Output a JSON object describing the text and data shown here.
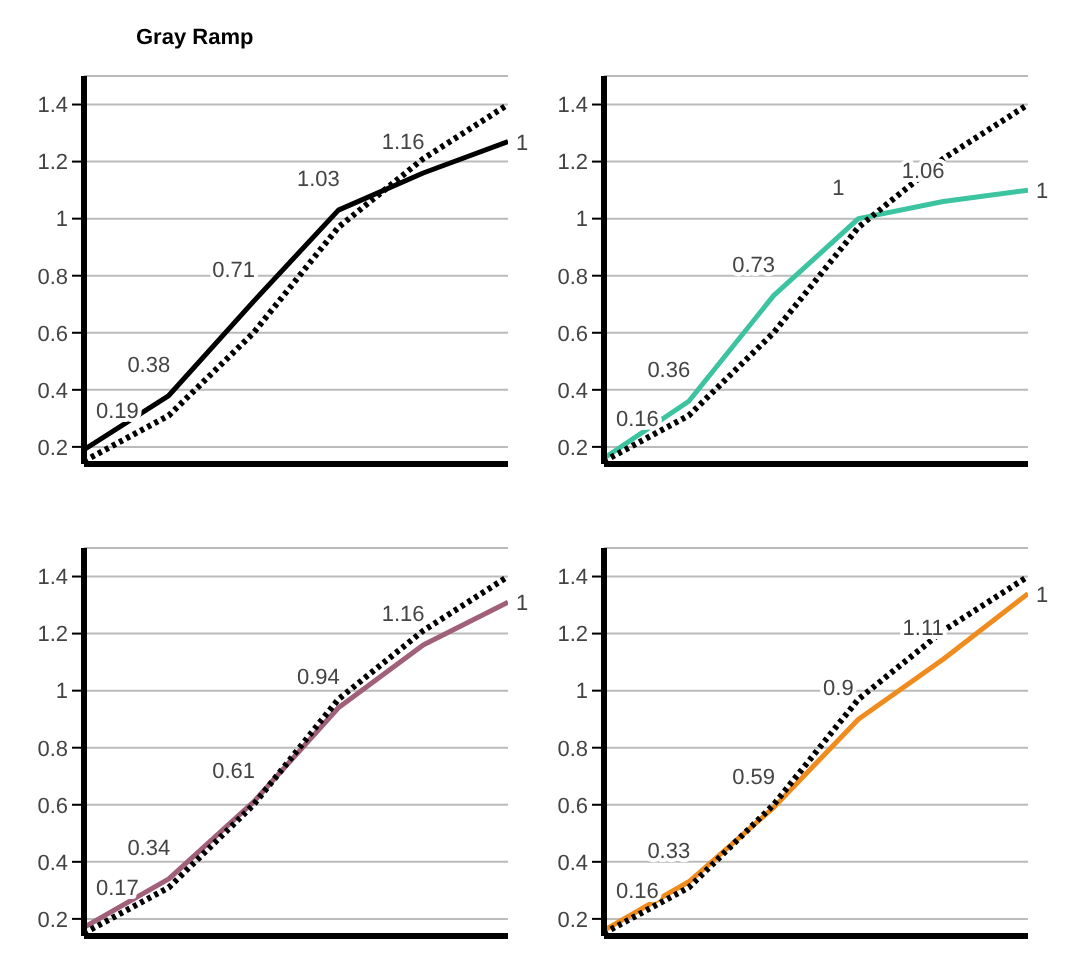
{
  "chart_data": [
    {
      "type": "line",
      "title": "Gray Ramp",
      "categories": [
        null,
        null,
        null,
        null,
        null,
        null
      ],
      "ylim": [
        0.14,
        1.5
      ],
      "yticks": [
        0.2,
        0.4,
        0.6,
        0.8,
        1,
        1.2,
        1.4
      ],
      "grid": "y",
      "tick_labels": "y",
      "marker": "none",
      "series": [
        {
          "color": "#000000",
          "line_style": "solid",
          "values": [
            0.19,
            0.38,
            0.71,
            1.03,
            1.16,
            1.27
          ],
          "value_labels": [
            "0.19",
            "0.38",
            "0.71",
            "1.03",
            "1.16",
            "1"
          ]
        },
        {
          "color": "#000000",
          "line_style": "dotted",
          "values": [
            0.15,
            0.31,
            0.6,
            0.97,
            1.21,
            1.4
          ]
        }
      ]
    },
    {
      "type": "line",
      "categories": [
        null,
        null,
        null,
        null,
        null,
        null
      ],
      "ylim": [
        0.14,
        1.5
      ],
      "yticks": [
        0.2,
        0.4,
        0.6,
        0.8,
        1,
        1.2,
        1.4
      ],
      "grid": "y",
      "tick_labels": "y",
      "marker": "none",
      "series": [
        {
          "color": "#3cc4a0",
          "line_style": "solid",
          "values": [
            0.16,
            0.36,
            0.73,
            1.0,
            1.06,
            1.1
          ],
          "value_labels": [
            "0.16",
            "0.36",
            "0.73",
            "1",
            "1.06",
            "1"
          ]
        },
        {
          "color": "#000000",
          "line_style": "dotted",
          "values": [
            0.15,
            0.31,
            0.6,
            0.97,
            1.21,
            1.4
          ]
        }
      ]
    },
    {
      "type": "line",
      "categories": [
        null,
        null,
        null,
        null,
        null,
        null
      ],
      "ylim": [
        0.14,
        1.5
      ],
      "yticks": [
        0.2,
        0.4,
        0.6,
        0.8,
        1,
        1.2,
        1.4
      ],
      "grid": "y",
      "tick_labels": "y",
      "marker": "none",
      "series": [
        {
          "color": "#a0607a",
          "line_style": "solid",
          "values": [
            0.17,
            0.34,
            0.61,
            0.94,
            1.16,
            1.31
          ],
          "value_labels": [
            "0.17",
            "0.34",
            "0.61",
            "0.94",
            "1.16",
            "1"
          ]
        },
        {
          "color": "#000000",
          "line_style": "dotted",
          "values": [
            0.15,
            0.31,
            0.6,
            0.97,
            1.21,
            1.4
          ]
        }
      ]
    },
    {
      "type": "line",
      "categories": [
        null,
        null,
        null,
        null,
        null,
        null
      ],
      "ylim": [
        0.14,
        1.5
      ],
      "yticks": [
        0.2,
        0.4,
        0.6,
        0.8,
        1,
        1.2,
        1.4
      ],
      "grid": "y",
      "tick_labels": "y",
      "marker": "none",
      "series": [
        {
          "color": "#f08c1e",
          "line_style": "solid",
          "values": [
            0.16,
            0.33,
            0.59,
            0.9,
            1.11,
            1.34
          ],
          "value_labels": [
            "0.16",
            "0.33",
            "0.59",
            "0.9",
            "1.11",
            "1"
          ]
        },
        {
          "color": "#000000",
          "line_style": "dotted",
          "values": [
            0.15,
            0.31,
            0.6,
            0.97,
            1.21,
            1.4
          ]
        }
      ]
    }
  ]
}
